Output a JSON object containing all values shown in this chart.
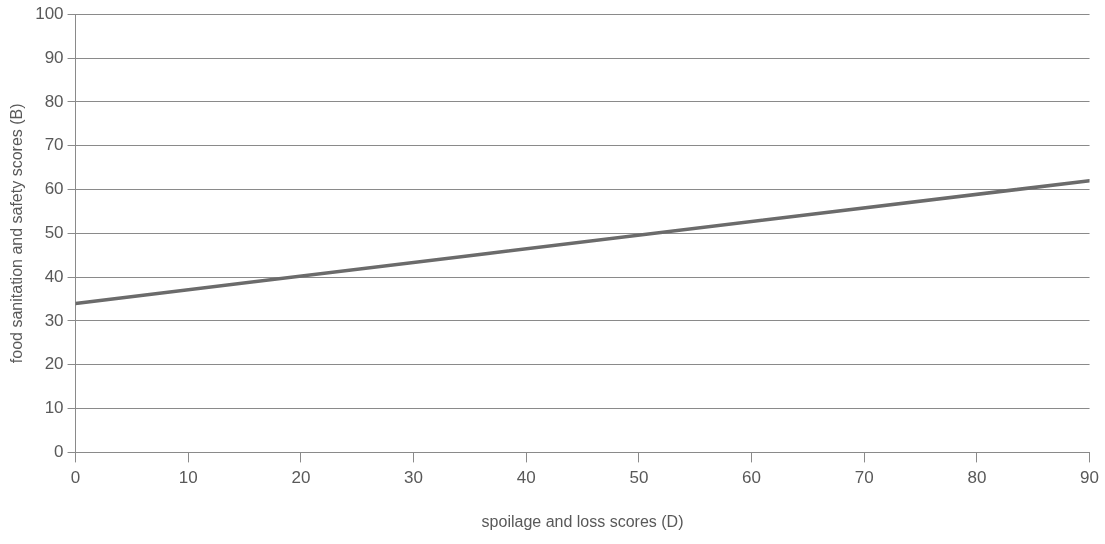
{
  "chart_data": {
    "type": "line",
    "xlabel": "spoilage and loss scores (D)",
    "ylabel": "food sanitation and safety scores (B)",
    "x": [
      0,
      90
    ],
    "series": [
      {
        "color": "#6b6b6b",
        "values": [
          34,
          62
        ]
      }
    ],
    "xlim": [
      0,
      90
    ],
    "xticks": [
      0,
      10,
      20,
      30,
      40,
      50,
      60,
      70,
      80,
      90
    ],
    "ylim": [
      0,
      100
    ],
    "yticks": [
      0,
      10,
      20,
      30,
      40,
      50,
      60,
      70,
      80,
      90,
      100
    ],
    "grid": "y",
    "legend": false,
    "marker": "none",
    "line_style": "solid"
  }
}
